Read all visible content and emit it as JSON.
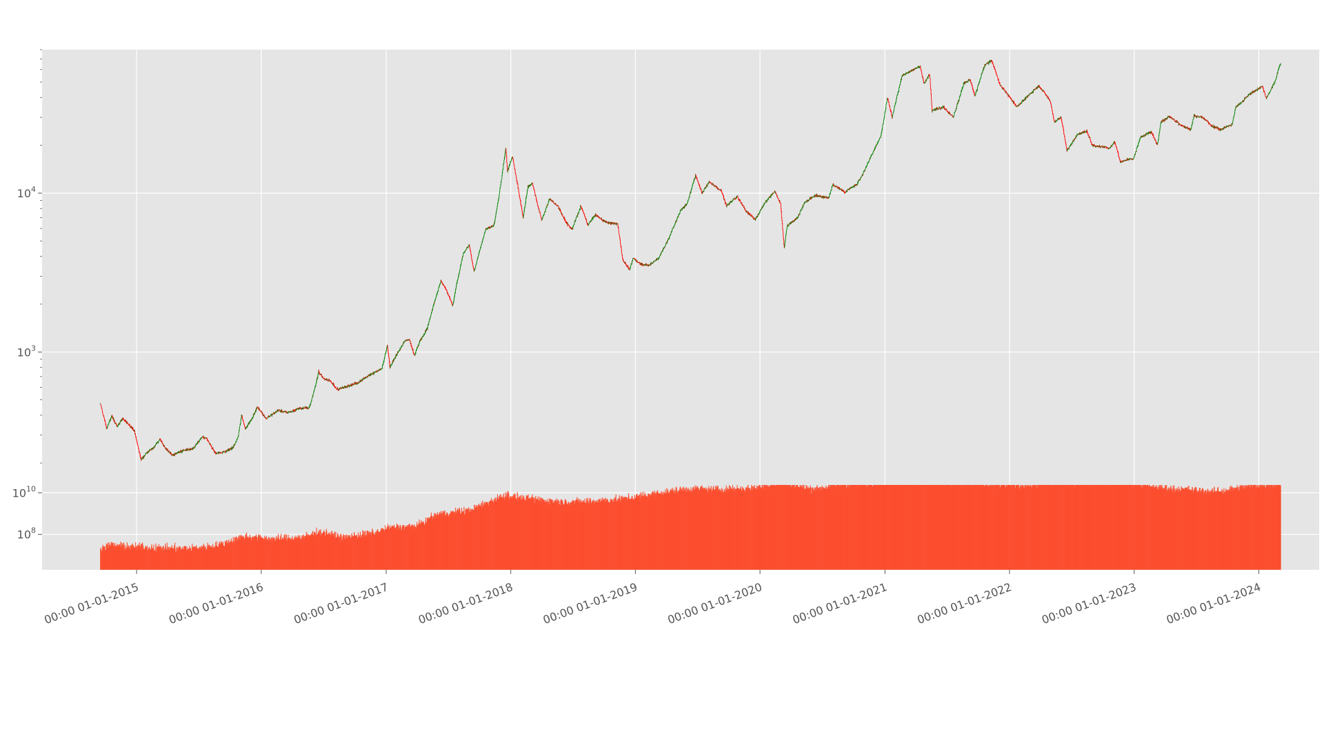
{
  "colors": {
    "background": "#ffffff",
    "panel": "#e5e5e5",
    "grid": "#ffffff",
    "up": "#008000",
    "down": "#ff0000",
    "volume": "#fc4f30",
    "tick_text": "#555555"
  },
  "chart_data": [
    {
      "type": "candlestick",
      "title": "",
      "xlabel": "",
      "ylabel": "",
      "yscale": "log",
      "ylim": [
        150,
        80000
      ],
      "grid": true,
      "y_ticks": [
        {
          "value": 1000,
          "base": "10",
          "exp": "3"
        },
        {
          "value": 10000,
          "base": "10",
          "exp": "4"
        }
      ],
      "x_ticks": [
        {
          "date": "2015-01-01",
          "label": "00:00 01-01-2015"
        },
        {
          "date": "2016-01-01",
          "label": "00:00 01-01-2016"
        },
        {
          "date": "2017-01-01",
          "label": "00:00 01-01-2017"
        },
        {
          "date": "2018-01-01",
          "label": "00:00 01-01-2018"
        },
        {
          "date": "2019-01-01",
          "label": "00:00 01-01-2019"
        },
        {
          "date": "2020-01-01",
          "label": "00:00 01-01-2020"
        },
        {
          "date": "2021-01-01",
          "label": "00:00 01-01-2021"
        },
        {
          "date": "2022-01-01",
          "label": "00:00 01-01-2022"
        },
        {
          "date": "2023-01-01",
          "label": "00:00 01-01-2023"
        },
        {
          "date": "2024-01-01",
          "label": "00:00 01-01-2024"
        }
      ],
      "xlim": [
        "2014-03-30",
        "2024-06-26"
      ],
      "series": [
        {
          "values": [
            [
              "2014-09-17",
              470
            ],
            [
              "2014-10-05",
              330
            ],
            [
              "2014-10-20",
              395
            ],
            [
              "2014-11-05",
              340
            ],
            [
              "2014-11-20",
              380
            ],
            [
              "2014-12-10",
              350
            ],
            [
              "2014-12-25",
              320
            ],
            [
              "2015-01-14",
              210
            ],
            [
              "2015-02-01",
              235
            ],
            [
              "2015-02-20",
              250
            ],
            [
              "2015-03-10",
              285
            ],
            [
              "2015-03-25",
              250
            ],
            [
              "2015-04-15",
              225
            ],
            [
              "2015-05-15",
              240
            ],
            [
              "2015-06-15",
              245
            ],
            [
              "2015-07-10",
              290
            ],
            [
              "2015-07-25",
              285
            ],
            [
              "2015-08-20",
              230
            ],
            [
              "2015-09-15",
              235
            ],
            [
              "2015-10-10",
              250
            ],
            [
              "2015-10-25",
              290
            ],
            [
              "2015-11-04",
              400
            ],
            [
              "2015-11-15",
              330
            ],
            [
              "2015-12-05",
              380
            ],
            [
              "2015-12-20",
              450
            ],
            [
              "2016-01-15",
              380
            ],
            [
              "2016-02-20",
              430
            ],
            [
              "2016-03-20",
              415
            ],
            [
              "2016-04-20",
              440
            ],
            [
              "2016-05-20",
              445
            ],
            [
              "2016-06-01",
              540
            ],
            [
              "2016-06-17",
              750
            ],
            [
              "2016-07-01",
              680
            ],
            [
              "2016-07-20",
              660
            ],
            [
              "2016-08-10",
              580
            ],
            [
              "2016-09-10",
              610
            ],
            [
              "2016-10-10",
              640
            ],
            [
              "2016-11-10",
              710
            ],
            [
              "2016-12-01",
              750
            ],
            [
              "2016-12-20",
              790
            ],
            [
              "2017-01-04",
              1100
            ],
            [
              "2017-01-12",
              800
            ],
            [
              "2017-01-31",
              960
            ],
            [
              "2017-02-25",
              1180
            ],
            [
              "2017-03-10",
              1200
            ],
            [
              "2017-03-24",
              950
            ],
            [
              "2017-04-10",
              1180
            ],
            [
              "2017-05-01",
              1400
            ],
            [
              "2017-05-20",
              2000
            ],
            [
              "2017-06-10",
              2800
            ],
            [
              "2017-06-25",
              2500
            ],
            [
              "2017-07-15",
              1950
            ],
            [
              "2017-07-25",
              2600
            ],
            [
              "2017-08-15",
              4200
            ],
            [
              "2017-09-01",
              4700
            ],
            [
              "2017-09-15",
              3200
            ],
            [
              "2017-10-01",
              4300
            ],
            [
              "2017-10-20",
              6000
            ],
            [
              "2017-11-12",
              6200
            ],
            [
              "2017-11-28",
              9800
            ],
            [
              "2017-12-17",
              19200
            ],
            [
              "2017-12-22",
              13800
            ],
            [
              "2018-01-06",
              17000
            ],
            [
              "2018-01-20",
              11500
            ],
            [
              "2018-02-06",
              7000
            ],
            [
              "2018-02-20",
              11000
            ],
            [
              "2018-03-05",
              11500
            ],
            [
              "2018-03-20",
              8500
            ],
            [
              "2018-04-01",
              6800
            ],
            [
              "2018-04-25",
              9200
            ],
            [
              "2018-05-20",
              8200
            ],
            [
              "2018-06-10",
              6600
            ],
            [
              "2018-06-29",
              5900
            ],
            [
              "2018-07-25",
              8300
            ],
            [
              "2018-08-15",
              6300
            ],
            [
              "2018-09-05",
              7300
            ],
            [
              "2018-10-10",
              6500
            ],
            [
              "2018-11-10",
              6400
            ],
            [
              "2018-11-25",
              3800
            ],
            [
              "2018-12-15",
              3300
            ],
            [
              "2018-12-25",
              3900
            ],
            [
              "2019-01-15",
              3600
            ],
            [
              "2019-02-10",
              3500
            ],
            [
              "2019-03-10",
              3900
            ],
            [
              "2019-04-05",
              5000
            ],
            [
              "2019-05-15",
              7900
            ],
            [
              "2019-06-01",
              8500
            ],
            [
              "2019-06-26",
              13000
            ],
            [
              "2019-07-15",
              10000
            ],
            [
              "2019-08-05",
              11800
            ],
            [
              "2019-09-10",
              10300
            ],
            [
              "2019-09-25",
              8300
            ],
            [
              "2019-10-26",
              9500
            ],
            [
              "2019-11-20",
              7800
            ],
            [
              "2019-12-18",
              6800
            ],
            [
              "2020-01-15",
              8700
            ],
            [
              "2020-02-13",
              10300
            ],
            [
              "2020-03-01",
              8500
            ],
            [
              "2020-03-12",
              4500
            ],
            [
              "2020-03-20",
              6200
            ],
            [
              "2020-04-20",
              7000
            ],
            [
              "2020-05-10",
              8700
            ],
            [
              "2020-06-10",
              9700
            ],
            [
              "2020-07-20",
              9300
            ],
            [
              "2020-08-01",
              11300
            ],
            [
              "2020-09-05",
              10200
            ],
            [
              "2020-10-10",
              11300
            ],
            [
              "2020-11-01",
              13700
            ],
            [
              "2020-12-01",
              19000
            ],
            [
              "2020-12-20",
              23000
            ],
            [
              "2021-01-08",
              40000
            ],
            [
              "2021-01-22",
              30000
            ],
            [
              "2021-02-20",
              55000
            ],
            [
              "2021-03-12",
              58000
            ],
            [
              "2021-04-14",
              63000
            ],
            [
              "2021-04-25",
              49000
            ],
            [
              "2021-05-12",
              56000
            ],
            [
              "2021-05-19",
              33000
            ],
            [
              "2021-06-20",
              35000
            ],
            [
              "2021-07-20",
              30000
            ],
            [
              "2021-08-20",
              49000
            ],
            [
              "2021-09-07",
              52000
            ],
            [
              "2021-09-21",
              41000
            ],
            [
              "2021-10-20",
              64000
            ],
            [
              "2021-11-10",
              68000
            ],
            [
              "2021-11-26",
              54000
            ],
            [
              "2021-12-04",
              48000
            ],
            [
              "2022-01-22",
              35000
            ],
            [
              "2022-03-28",
              47500
            ],
            [
              "2022-04-30",
              38000
            ],
            [
              "2022-05-12",
              28000
            ],
            [
              "2022-06-01",
              30000
            ],
            [
              "2022-06-18",
              18500
            ],
            [
              "2022-07-20",
              23500
            ],
            [
              "2022-08-15",
              24500
            ],
            [
              "2022-09-01",
              20000
            ],
            [
              "2022-10-20",
              19200
            ],
            [
              "2022-11-05",
              21000
            ],
            [
              "2022-11-21",
              15800
            ],
            [
              "2022-12-30",
              16500
            ],
            [
              "2023-01-20",
              22700
            ],
            [
              "2023-02-20",
              24300
            ],
            [
              "2023-03-10",
              20100
            ],
            [
              "2023-03-20",
              28000
            ],
            [
              "2023-04-14",
              30400
            ],
            [
              "2023-05-15",
              27000
            ],
            [
              "2023-06-15",
              25000
            ],
            [
              "2023-06-25",
              30500
            ],
            [
              "2023-07-20",
              30000
            ],
            [
              "2023-08-17",
              26500
            ],
            [
              "2023-09-11",
              25100
            ],
            [
              "2023-10-15",
              27000
            ],
            [
              "2023-10-25",
              34500
            ],
            [
              "2023-12-05",
              42000
            ],
            [
              "2024-01-11",
              47000
            ],
            [
              "2024-01-23",
              39500
            ],
            [
              "2024-02-10",
              47000
            ],
            [
              "2024-02-20",
              52000
            ],
            [
              "2024-02-29",
              62000
            ],
            [
              "2024-03-05",
              66000
            ]
          ]
        }
      ]
    },
    {
      "type": "bar",
      "title": "",
      "xlabel": "",
      "ylabel": "",
      "yscale": "log",
      "ylim": [
        2000000,
        30000000000
      ],
      "grid": true,
      "y_ticks": [
        {
          "value": 100000000,
          "base": "10",
          "exp": "8"
        },
        {
          "value": 10000000000,
          "base": "10",
          "exp": "10"
        }
      ],
      "xlim": [
        "2014-03-30",
        "2024-06-26"
      ],
      "series": [
        {
          "values": [
            [
              "2014-09-17",
              20000000
            ],
            [
              "2014-10-15",
              30000000
            ],
            [
              "2014-12-15",
              25000000
            ],
            [
              "2015-06-01",
              20000000
            ],
            [
              "2015-09-01",
              30000000
            ],
            [
              "2015-11-10",
              80000000
            ],
            [
              "2016-02-01",
              60000000
            ],
            [
              "2016-05-01",
              70000000
            ],
            [
              "2016-06-20",
              130000000
            ],
            [
              "2016-09-01",
              70000000
            ],
            [
              "2016-12-01",
              120000000
            ],
            [
              "2017-01-05",
              200000000
            ],
            [
              "2017-04-01",
              250000000
            ],
            [
              "2017-06-01",
              900000000
            ],
            [
              "2017-09-01",
              1400000000
            ],
            [
              "2017-12-20",
              8000000000
            ],
            [
              "2018-02-01",
              5500000000
            ],
            [
              "2018-06-01",
              3500000000
            ],
            [
              "2018-09-01",
              3800000000
            ],
            [
              "2018-12-01",
              5000000000
            ],
            [
              "2019-03-01",
              9000000000
            ],
            [
              "2019-06-01",
              15000000000
            ],
            [
              "2019-09-01",
              14000000000
            ],
            [
              "2019-12-01",
              16000000000
            ],
            [
              "2020-03-10",
              30000000000
            ],
            [
              "2020-06-01",
              15000000000
            ],
            [
              "2020-09-01",
              25000000000
            ],
            [
              "2020-12-01",
              30000000000
            ],
            [
              "2021-01-15",
              45000000000
            ],
            [
              "2021-05-15",
              40000000000
            ],
            [
              "2021-08-01",
              27000000000
            ],
            [
              "2021-11-01",
              25000000000
            ],
            [
              "2022-03-01",
              23000000000
            ],
            [
              "2022-06-15",
              30000000000
            ],
            [
              "2022-09-01",
              35000000000
            ],
            [
              "2022-11-10",
              40000000000
            ],
            [
              "2023-02-01",
              22000000000
            ],
            [
              "2023-05-01",
              15000000000
            ],
            [
              "2023-09-01",
              11000000000
            ],
            [
              "2023-12-01",
              20000000000
            ],
            [
              "2024-02-01",
              25000000000
            ],
            [
              "2024-03-05",
              28000000000
            ]
          ]
        }
      ]
    }
  ]
}
